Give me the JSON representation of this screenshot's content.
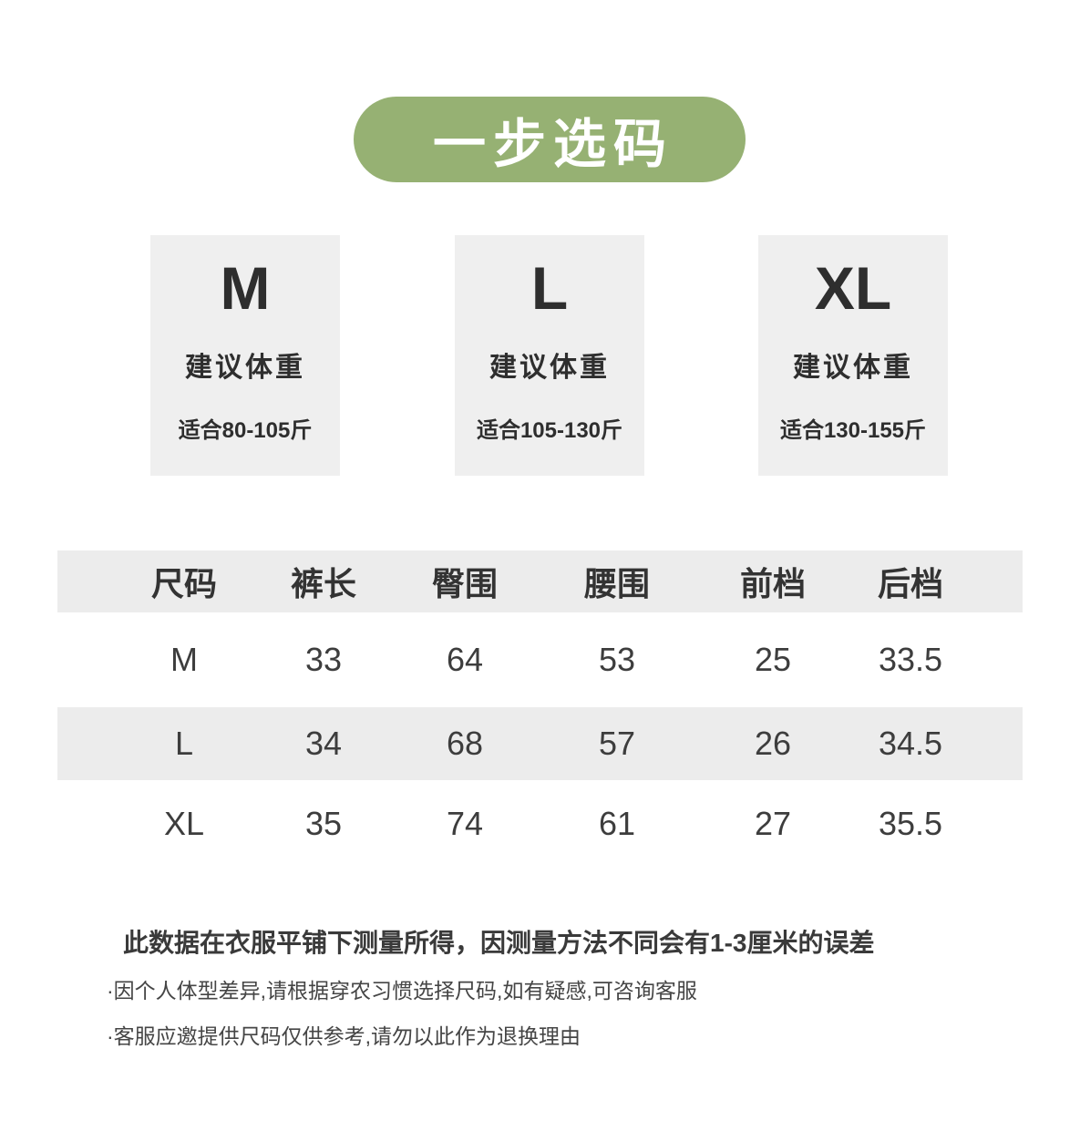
{
  "title": {
    "label": "一步选码"
  },
  "size_cards": [
    {
      "size": "M",
      "subtitle": "建议体重",
      "range": "适合80-105斤"
    },
    {
      "size": "L",
      "subtitle": "建议体重",
      "range": "适合105-130斤"
    },
    {
      "size": "XL",
      "subtitle": "建议体重",
      "range": "适合130-155斤"
    }
  ],
  "size_table": {
    "headers": [
      "尺码",
      "裤长",
      "臀围",
      "腰围",
      "前档",
      "后档"
    ],
    "rows": [
      {
        "cells": [
          "M",
          "33",
          "64",
          "53",
          "25",
          "33.5"
        ]
      },
      {
        "cells": [
          "L",
          "34",
          "68",
          "57",
          "26",
          "34.5"
        ]
      },
      {
        "cells": [
          "XL",
          "35",
          "74",
          "61",
          "27",
          "35.5"
        ]
      }
    ]
  },
  "notes": {
    "primary": "此数据在衣服平铺下测量所得，因测量方法不同会有1-3厘米的误差",
    "secondary": [
      "·因个人体型差异,请根据穿农习惯选择尺码,如有疑感,可咨询客服",
      "·客服应邀提供尺码仅供参考,请勿以此作为退换理由"
    ]
  },
  "colors": {
    "accent_green": "#96b173",
    "card_bg": "#efefef",
    "row_stripe": "#ececec",
    "text_dark": "#2f2f2f",
    "title_text": "#ffffff"
  }
}
